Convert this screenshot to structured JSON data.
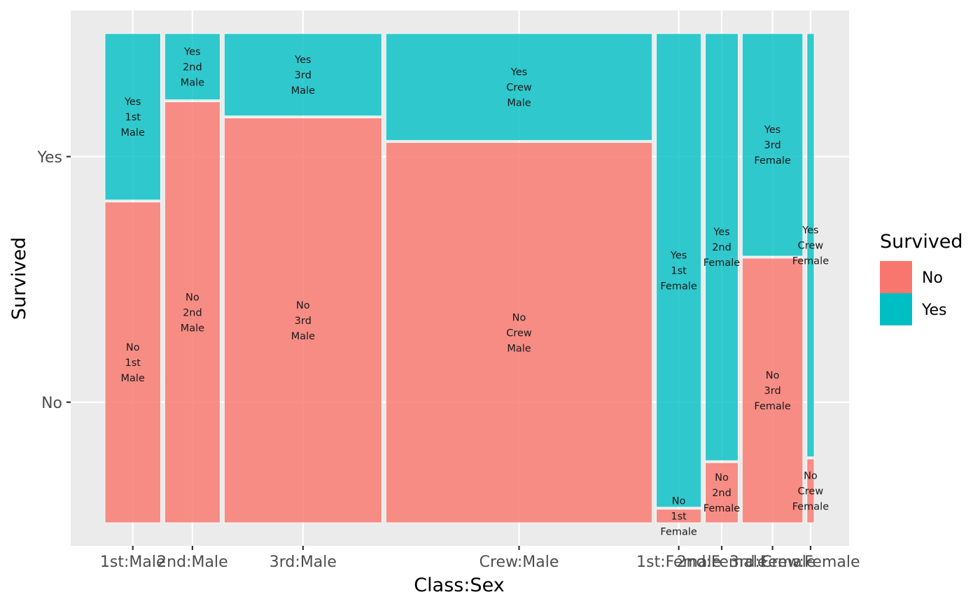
{
  "chart_data": {
    "type": "mosaic",
    "xlabel": "Class:Sex",
    "ylabel": "Survived",
    "y_levels": [
      "No",
      "Yes"
    ],
    "colors": {
      "No": "#F8766D",
      "Yes": "#00BFC4"
    },
    "grid": true,
    "legend": {
      "title": "Survived",
      "placement": "right",
      "entries": [
        {
          "label": "No",
          "color": "#F8766D"
        },
        {
          "label": "Yes",
          "color": "#00BFC4"
        }
      ]
    },
    "groups": [
      {
        "label": "1st:Male",
        "class": "1st",
        "sex": "Male",
        "no": 118,
        "yes": 62
      },
      {
        "label": "2nd:Male",
        "class": "2nd",
        "sex": "Male",
        "no": 154,
        "yes": 25
      },
      {
        "label": "3rd:Male",
        "class": "3rd",
        "sex": "Male",
        "no": 422,
        "yes": 88
      },
      {
        "label": "Crew:Male",
        "class": "Crew",
        "sex": "Male",
        "no": 670,
        "yes": 192
      },
      {
        "label": "1st:Female",
        "class": "1st",
        "sex": "Female",
        "no": 4,
        "yes": 141
      },
      {
        "label": "2nd:Female",
        "class": "2nd",
        "sex": "Female",
        "no": 13,
        "yes": 93
      },
      {
        "label": "3rd:Female",
        "class": "3rd",
        "sex": "Female",
        "no": 106,
        "yes": 90
      },
      {
        "label": "Crew:Female",
        "class": "Crew",
        "sex": "Female",
        "no": 3,
        "yes": 20
      }
    ]
  }
}
